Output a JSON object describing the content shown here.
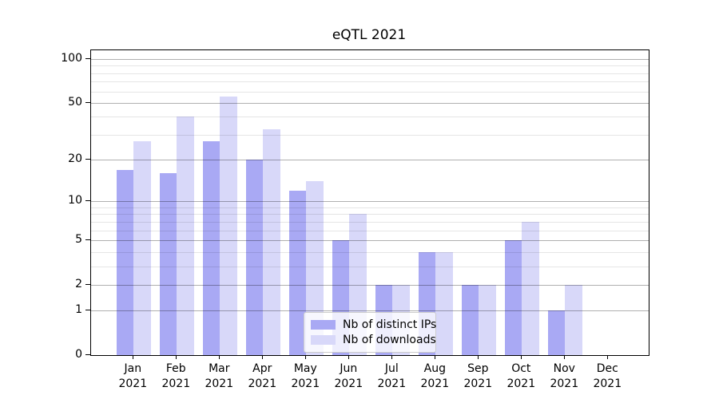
{
  "title": "eQTL 2021",
  "colors": {
    "ips_bar": "#a9a9f4",
    "downloads_bar": "#d8d8f9",
    "major_grid": "#b0b0b0",
    "minor_grid": "#e4e4e4",
    "spine": "#000000",
    "background": "#ffffff",
    "legend_border": "#cccccc",
    "text": "#000000"
  },
  "legend": {
    "items": [
      {
        "label": "Nb of distinct IPs",
        "series": "ips"
      },
      {
        "label": "Nb of downloads",
        "series": "downloads"
      }
    ]
  },
  "y_axis": {
    "tick_labels": [
      "100",
      "50",
      "20",
      "10",
      "5",
      "2",
      "1",
      "0"
    ],
    "tick_values": [
      100,
      50,
      20,
      10,
      5,
      2,
      1,
      0
    ],
    "major_grid_values": [
      1,
      2,
      5,
      10,
      20,
      50,
      100
    ],
    "minor_grid_values": [
      3,
      4,
      6,
      7,
      8,
      9,
      30,
      40,
      60,
      70,
      80,
      90
    ],
    "scale": "log1p"
  },
  "x_axis": {
    "months": [
      "Jan",
      "Feb",
      "Mar",
      "Apr",
      "May",
      "Jun",
      "Jul",
      "Aug",
      "Sep",
      "Oct",
      "Nov",
      "Dec"
    ],
    "year": "2021"
  },
  "chart_data": {
    "type": "bar",
    "title": "eQTL 2021",
    "categories": [
      "Jan 2021",
      "Feb 2021",
      "Mar 2021",
      "Apr 2021",
      "May 2021",
      "Jun 2021",
      "Jul 2021",
      "Aug 2021",
      "Sep 2021",
      "Oct 2021",
      "Nov 2021",
      "Dec 2021"
    ],
    "series": [
      {
        "name": "Nb of distinct IPs",
        "values": [
          17,
          16,
          27,
          20,
          12,
          5,
          2,
          4,
          2,
          5,
          1,
          0
        ]
      },
      {
        "name": "Nb of downloads",
        "values": [
          27,
          40,
          55,
          33,
          14,
          8,
          2,
          4,
          2,
          7,
          2,
          0
        ]
      }
    ],
    "xlabel": "",
    "ylabel": "",
    "yscale": "log1p",
    "yticks": [
      0,
      1,
      2,
      5,
      10,
      20,
      50,
      100
    ],
    "ylim": [
      0,
      112
    ],
    "grid": true,
    "legend_position": "lower center"
  }
}
